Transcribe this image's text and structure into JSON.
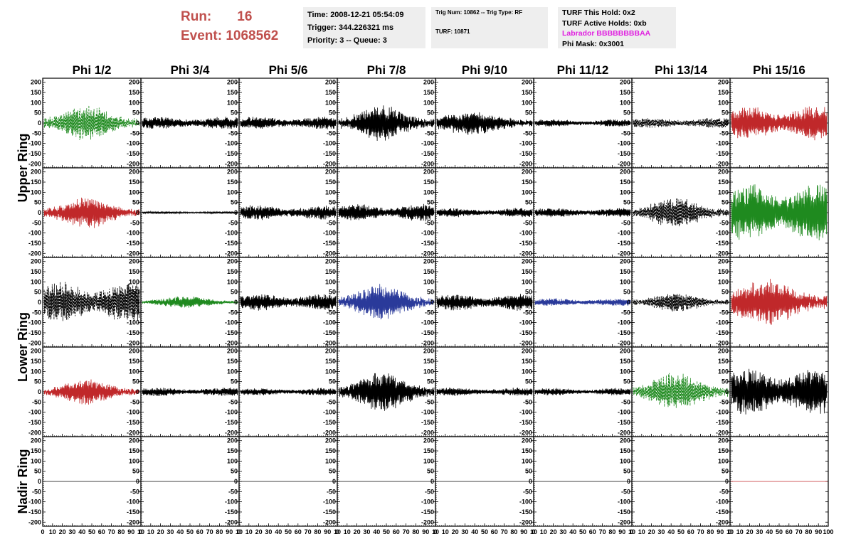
{
  "header": {
    "run_label": "Run:",
    "run_value": "16",
    "event_label": "Event:",
    "event_value": "1068562",
    "box1": [
      "Time: 2008-12-21 05:54:09",
      "Trigger: 344.226321 ms",
      "Priority: 3 -- Queue: 3"
    ],
    "box2": [
      "Trig Num: 10862 -- Trig Type: RF",
      "TURF: 10871"
    ],
    "box3": [
      "TURF This Hold: 0x2",
      "TURF Active Holds: 0xb",
      "Labrador BBBBBBBBAA",
      "Phi Mask: 0x3001"
    ]
  },
  "colors": {
    "run_text": "#c0504d",
    "black": "#000000",
    "green": "#1f8a1f",
    "red": "#c0282a",
    "blue": "#2a3a9a",
    "magenta": "#e020e0",
    "box_bg": "#eeeeee"
  },
  "chart_data": {
    "type": "line",
    "columns": [
      "Phi 1/2",
      "Phi 3/4",
      "Phi 5/6",
      "Phi 7/8",
      "Phi 9/10",
      "Phi 11/12",
      "Phi 13/14",
      "Phi 15/16"
    ],
    "row_groups": [
      {
        "label": "Upper Ring",
        "rows": [
          0,
          1
        ]
      },
      {
        "label": "Lower Ring",
        "rows": [
          2,
          3
        ]
      },
      {
        "label": "Nadir Ring",
        "rows": [
          4
        ]
      }
    ],
    "ylim": [
      -220,
      220
    ],
    "yticks": [
      -200,
      -150,
      -100,
      -50,
      0,
      50,
      100,
      150,
      200
    ],
    "xlim": [
      0,
      100
    ],
    "xticks": [
      0,
      10,
      20,
      30,
      40,
      50,
      60,
      70,
      80,
      90,
      100
    ],
    "xtick_labels_main": [
      "0",
      "10",
      "20",
      "30",
      "40",
      "50",
      "60",
      "70",
      "80",
      "90",
      "10"
    ],
    "xtick_labels_last": [
      "0",
      "10",
      "20",
      "30",
      "40",
      "50",
      "60",
      "70",
      "80",
      "90",
      "100"
    ],
    "panels": [
      [
        {
          "color": "green",
          "dashed": true,
          "amplitude": 85,
          "envelope": "mid",
          "seed": 11
        },
        {
          "color": "black",
          "dashed": false,
          "amplitude": 30,
          "envelope": "flat",
          "seed": 12
        },
        {
          "color": "black",
          "dashed": false,
          "amplitude": 30,
          "envelope": "flat",
          "seed": 13
        },
        {
          "color": "black",
          "dashed": false,
          "amplitude": 85,
          "envelope": "mid",
          "seed": 14
        },
        {
          "color": "black",
          "dashed": false,
          "amplitude": 55,
          "envelope": "early",
          "seed": 15
        },
        {
          "color": "black",
          "dashed": false,
          "amplitude": 18,
          "envelope": "flat",
          "seed": 16
        },
        {
          "color": "black",
          "dashed": true,
          "amplitude": 25,
          "envelope": "flat",
          "seed": 17
        },
        {
          "color": "red",
          "dashed": false,
          "amplitude": 80,
          "envelope": "flat",
          "seed": 18
        }
      ],
      [
        {
          "color": "red",
          "dashed": false,
          "amplitude": 75,
          "envelope": "mid",
          "seed": 21
        },
        {
          "color": "black",
          "dashed": false,
          "amplitude": 6,
          "envelope": "flat",
          "seed": 22
        },
        {
          "color": "black",
          "dashed": false,
          "amplitude": 35,
          "envelope": "flat",
          "seed": 23
        },
        {
          "color": "black",
          "dashed": false,
          "amplitude": 40,
          "envelope": "flat",
          "seed": 24
        },
        {
          "color": "black",
          "dashed": false,
          "amplitude": 22,
          "envelope": "flat",
          "seed": 25
        },
        {
          "color": "black",
          "dashed": false,
          "amplitude": 22,
          "envelope": "flat",
          "seed": 26
        },
        {
          "color": "black",
          "dashed": true,
          "amplitude": 75,
          "envelope": "mid",
          "seed": 27
        },
        {
          "color": "green",
          "dashed": false,
          "amplitude": 135,
          "envelope": "flat",
          "seed": 28
        }
      ],
      [
        {
          "color": "black",
          "dashed": true,
          "amplitude": 95,
          "envelope": "flat",
          "seed": 31
        },
        {
          "color": "green",
          "dashed": false,
          "amplitude": 28,
          "envelope": "mid",
          "seed": 32
        },
        {
          "color": "black",
          "dashed": false,
          "amplitude": 40,
          "envelope": "flat",
          "seed": 33
        },
        {
          "color": "blue",
          "dashed": false,
          "amplitude": 85,
          "envelope": "mid",
          "seed": 34
        },
        {
          "color": "black",
          "dashed": false,
          "amplitude": 40,
          "envelope": "flat",
          "seed": 35
        },
        {
          "color": "blue",
          "dashed": false,
          "amplitude": 18,
          "envelope": "flat",
          "seed": 36
        },
        {
          "color": "black",
          "dashed": true,
          "amplitude": 45,
          "envelope": "mid",
          "seed": 37
        },
        {
          "color": "red",
          "dashed": false,
          "amplitude": 110,
          "envelope": "early",
          "seed": 38
        }
      ],
      [
        {
          "color": "red",
          "dashed": false,
          "amplitude": 60,
          "envelope": "mid",
          "seed": 41
        },
        {
          "color": "black",
          "dashed": false,
          "amplitude": 20,
          "envelope": "flat",
          "seed": 42
        },
        {
          "color": "black",
          "dashed": false,
          "amplitude": 18,
          "envelope": "flat",
          "seed": 43
        },
        {
          "color": "black",
          "dashed": false,
          "amplitude": 95,
          "envelope": "mid",
          "seed": 44
        },
        {
          "color": "black",
          "dashed": false,
          "amplitude": 20,
          "envelope": "flat",
          "seed": 45
        },
        {
          "color": "black",
          "dashed": false,
          "amplitude": 18,
          "envelope": "flat",
          "seed": 46
        },
        {
          "color": "green",
          "dashed": true,
          "amplitude": 90,
          "envelope": "mid",
          "seed": 47
        },
        {
          "color": "black",
          "dashed": false,
          "amplitude": 110,
          "envelope": "flat",
          "seed": 48
        }
      ],
      [
        {
          "color": "black",
          "dashed": false,
          "amplitude": 0,
          "envelope": "flat",
          "seed": 51
        },
        {
          "color": "black",
          "dashed": false,
          "amplitude": 0,
          "envelope": "flat",
          "seed": 52
        },
        {
          "color": "black",
          "dashed": false,
          "amplitude": 0,
          "envelope": "flat",
          "seed": 53
        },
        {
          "color": "black",
          "dashed": false,
          "amplitude": 0,
          "envelope": "flat",
          "seed": 54
        },
        {
          "color": "black",
          "dashed": false,
          "amplitude": 0,
          "envelope": "flat",
          "seed": 55
        },
        {
          "color": "black",
          "dashed": false,
          "amplitude": 0,
          "envelope": "flat",
          "seed": 56
        },
        {
          "color": "black",
          "dashed": false,
          "amplitude": 0,
          "envelope": "flat",
          "seed": 57
        },
        {
          "color": "red",
          "dashed": false,
          "amplitude": 0,
          "envelope": "flat",
          "seed": 58
        }
      ]
    ]
  }
}
